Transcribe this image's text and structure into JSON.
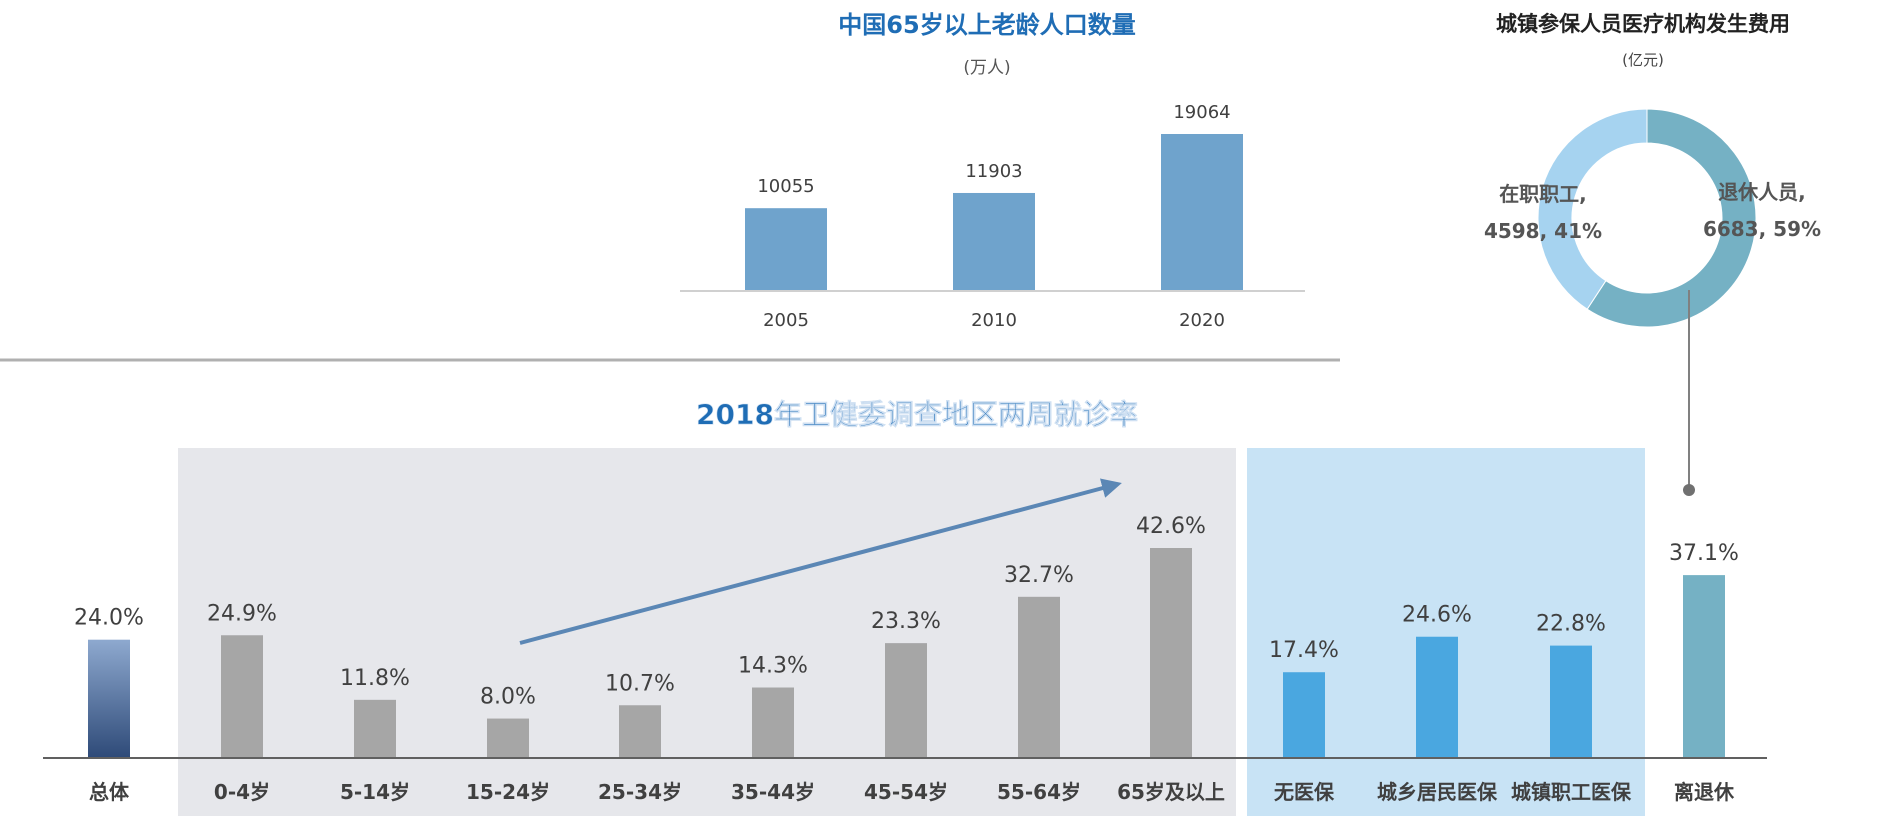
{
  "chart_data": [
    {
      "type": "bar",
      "title": "中国65岁以上老龄人口数量",
      "unit": "(万人)",
      "categories": [
        "2005",
        "2010",
        "2020"
      ],
      "values": [
        10055,
        11903,
        19064
      ],
      "ylim": [
        0,
        19064
      ],
      "colors": {
        "bar": "#6fa3cc"
      }
    },
    {
      "type": "pie",
      "title": "城镇参保人员医疗机构发生费用",
      "unit": "(亿元)",
      "slices": [
        {
          "name": "退休人员",
          "value": 6683,
          "percent": "59%",
          "label_name": "退休人员,",
          "label_value": "6683, 59%",
          "color": "#75b1c4"
        },
        {
          "name": "在职职工",
          "value": 4598,
          "percent": "41%",
          "label_name": "在职职工,",
          "label_value": "4598, 41%",
          "color": "#a6d3f0"
        }
      ]
    },
    {
      "type": "bar",
      "title": "2018年卫健委调查地区两周就诊率",
      "categories": [
        "总体",
        "0-4岁",
        "5-14岁",
        "15-24岁",
        "25-34岁",
        "35-44岁",
        "45-54岁",
        "55-64岁",
        "65岁及以上",
        "无医保",
        "城乡居民医保",
        "城镇职工医保",
        "离退休"
      ],
      "values": [
        24.0,
        24.9,
        11.8,
        8.0,
        10.7,
        14.3,
        23.3,
        32.7,
        42.6,
        17.4,
        24.6,
        22.8,
        37.1
      ],
      "value_labels": [
        "24.0%",
        "24.9%",
        "11.8%",
        "8.0%",
        "10.7%",
        "14.3%",
        "23.3%",
        "32.7%",
        "42.6%",
        "17.4%",
        "24.6%",
        "22.8%",
        "37.1%"
      ],
      "groups": [
        "total",
        "age",
        "age",
        "age",
        "age",
        "age",
        "age",
        "age",
        "age",
        "insurance",
        "insurance",
        "insurance",
        "retired"
      ],
      "ylim": [
        0,
        42.6
      ],
      "colors": {
        "total_top": "#8ea9cf",
        "total_bottom": "#2e4a78",
        "age": "#a6a6a6",
        "insurance": "#4aa7e0",
        "retired": "#75b1c4",
        "age_panel": "#e6e7eb",
        "insurance_panel": "#c8e3f5",
        "trend_arrow": "#5b87b5"
      }
    }
  ]
}
